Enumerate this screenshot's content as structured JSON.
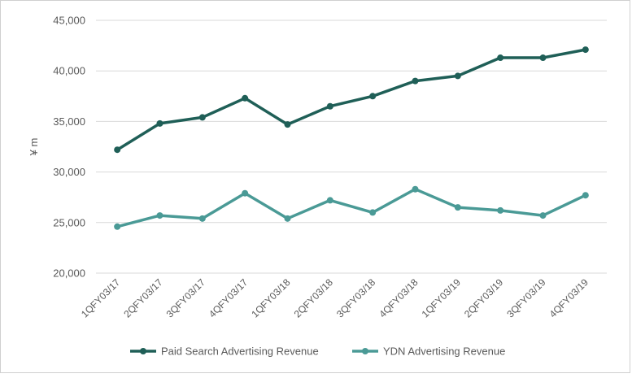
{
  "chart_data": {
    "type": "line",
    "title": "",
    "xlabel": "",
    "ylabel": "¥ m",
    "ylim": [
      20000,
      45000
    ],
    "yticks": [
      20000,
      25000,
      30000,
      35000,
      40000,
      45000
    ],
    "ytick_labels": [
      "20,000",
      "25,000",
      "30,000",
      "35,000",
      "40,000",
      "45,000"
    ],
    "grid": true,
    "legend_position": "bottom",
    "categories": [
      "1QFY03/17",
      "2QFY03/17",
      "3QFY03/17",
      "4QFY03/17",
      "1QFY03/18",
      "2QFY03/18",
      "3QFY03/18",
      "4QFY03/18",
      "1QFY03/19",
      "2QFY03/19",
      "3QFY03/19",
      "4QFY03/19"
    ],
    "series": [
      {
        "name": "Paid Search Advertising Revenue",
        "color": "#1f5f57",
        "values": [
          32200,
          34800,
          35400,
          37300,
          34700,
          36500,
          37500,
          39000,
          39500,
          41300,
          41300,
          42100
        ]
      },
      {
        "name": "YDN Advertising Revenue",
        "color": "#4a9a96",
        "values": [
          24600,
          25700,
          25400,
          27900,
          25400,
          27200,
          26000,
          28300,
          26500,
          26200,
          25700,
          27700
        ]
      }
    ]
  }
}
